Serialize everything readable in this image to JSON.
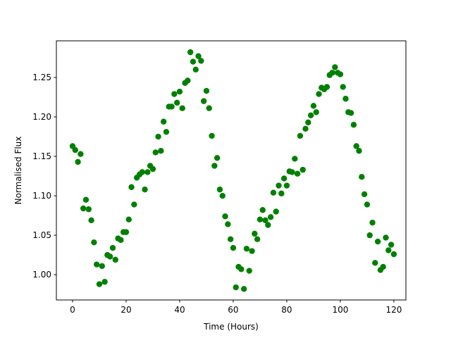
{
  "chart_data": {
    "type": "scatter",
    "xlabel": "Time (Hours)",
    "ylabel": "Normalised Flux",
    "series": [
      {
        "color": "#008000",
        "x": [
          0,
          1,
          2,
          3,
          4,
          5,
          6,
          7,
          8,
          9,
          10,
          11,
          12,
          13,
          14,
          15,
          16,
          17,
          18,
          19,
          20,
          21,
          22,
          23,
          24,
          25,
          26,
          27,
          28,
          29,
          30,
          31,
          32,
          33,
          34,
          35,
          36,
          37,
          38,
          39,
          40,
          41,
          42,
          43,
          44,
          45,
          46,
          47,
          48,
          49,
          50,
          51,
          52,
          53,
          54,
          55,
          56,
          57,
          58,
          59,
          60,
          61,
          62,
          63,
          64,
          65,
          66,
          67,
          68,
          69,
          70,
          71,
          72,
          73,
          74,
          75,
          76,
          77,
          78,
          79,
          80,
          81,
          82,
          83,
          84,
          85,
          86,
          87,
          88,
          89,
          90,
          91,
          92,
          93,
          94,
          95,
          96,
          97,
          98,
          99,
          100,
          101,
          102,
          103,
          104,
          105,
          106,
          107,
          108,
          109,
          110,
          111,
          112,
          113,
          114,
          115,
          116,
          117,
          118,
          119,
          120
        ],
        "values": [
          1.163,
          1.158,
          1.143,
          1.153,
          1.084,
          1.095,
          1.083,
          1.069,
          1.041,
          1.013,
          0.988,
          1.011,
          0.991,
          1.025,
          1.023,
          1.034,
          1.019,
          1.046,
          1.044,
          1.054,
          1.054,
          1.07,
          1.111,
          1.089,
          1.123,
          1.127,
          1.13,
          1.108,
          1.13,
          1.138,
          1.134,
          1.155,
          1.175,
          1.157,
          1.194,
          1.181,
          1.213,
          1.213,
          1.229,
          1.218,
          1.232,
          1.211,
          1.243,
          1.246,
          1.282,
          1.27,
          1.26,
          1.277,
          1.271,
          1.22,
          1.233,
          1.211,
          1.176,
          1.138,
          1.148,
          1.108,
          1.1,
          1.074,
          1.064,
          1.045,
          1.034,
          0.984,
          1.01,
          1.007,
          0.982,
          1.033,
          1.005,
          1.03,
          1.052,
          1.045,
          1.07,
          1.082,
          1.069,
          1.063,
          1.073,
          1.104,
          1.08,
          1.113,
          1.103,
          1.122,
          1.113,
          1.131,
          1.13,
          1.147,
          1.128,
          1.176,
          1.133,
          1.185,
          1.193,
          1.202,
          1.214,
          1.206,
          1.229,
          1.237,
          1.235,
          1.238,
          1.253,
          1.256,
          1.263,
          1.256,
          1.254,
          1.238,
          1.223,
          1.206,
          1.205,
          1.19,
          1.163,
          1.157,
          1.124,
          1.102,
          1.089,
          1.05,
          1.066,
          1.015,
          1.042,
          1.006,
          1.01,
          1.047,
          1.031,
          1.038,
          1.026
        ]
      }
    ],
    "xlim": [
      -6.05,
      124.5
    ],
    "ylim": [
      0.968,
      1.2964
    ],
    "xticks": [
      0,
      20,
      40,
      60,
      80,
      100,
      120
    ],
    "yticks": [
      {
        "value": 1,
        "label": "1.00"
      },
      1.05,
      {
        "value": 1.1,
        "label": "1.10"
      },
      1.15,
      {
        "value": 1.2,
        "label": "1.20"
      },
      1.25
    ]
  }
}
